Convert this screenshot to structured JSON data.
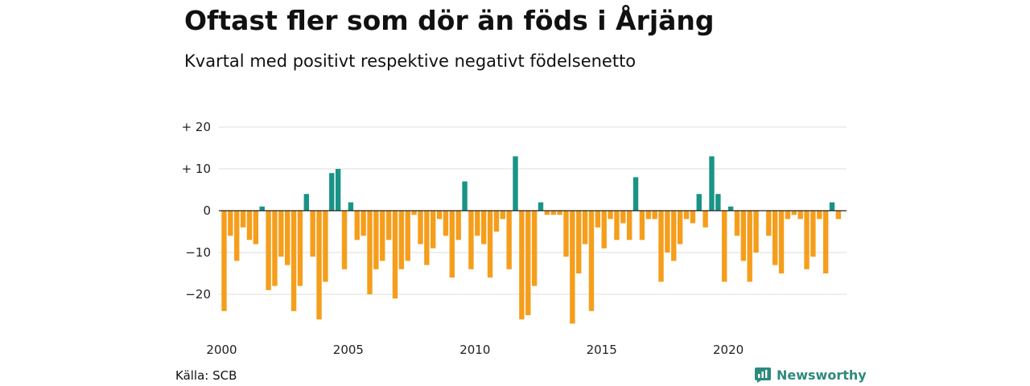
{
  "header": {
    "title": "Oftast fler som dör än föds i Årjäng",
    "subtitle": "Kvartal med positivt respektive negativt födelsenetto"
  },
  "footer": {
    "source": "Källa: SCB",
    "brand": "Newsworthy",
    "brand_icon": "newsworthy-logo-icon"
  },
  "colors": {
    "positive": "#1a9387",
    "negative": "#f59e1c",
    "grid": "#dddddd",
    "zero_line": "#222222"
  },
  "chart_data": {
    "type": "bar",
    "title": "Oftast fler som dör än föds i Årjäng",
    "subtitle": "Kvartal med positivt respektive negativt födelsenetto",
    "xlabel": "",
    "ylabel": "",
    "ylim": [
      -28,
      20
    ],
    "yticks": [
      {
        "value": 20,
        "label": "+ 20"
      },
      {
        "value": 10,
        "label": "+ 10"
      },
      {
        "value": 0,
        "label": "0"
      },
      {
        "value": -10,
        "label": "−10"
      },
      {
        "value": -20,
        "label": "−20"
      }
    ],
    "xticks": [
      {
        "year": 2000,
        "label": "2000"
      },
      {
        "year": 2005,
        "label": "2005"
      },
      {
        "year": 2010,
        "label": "2010"
      },
      {
        "year": 2015,
        "label": "2015"
      },
      {
        "year": 2020,
        "label": "2020"
      }
    ],
    "grid": true,
    "legend": "none",
    "categories": [
      "2000 Q1",
      "2000 Q2",
      "2000 Q3",
      "2000 Q4",
      "2001 Q1",
      "2001 Q2",
      "2001 Q3",
      "2001 Q4",
      "2002 Q1",
      "2002 Q2",
      "2002 Q3",
      "2002 Q4",
      "2003 Q1",
      "2003 Q2",
      "2003 Q3",
      "2003 Q4",
      "2004 Q1",
      "2004 Q2",
      "2004 Q3",
      "2004 Q4",
      "2005 Q1",
      "2005 Q2",
      "2005 Q3",
      "2005 Q4",
      "2006 Q1",
      "2006 Q2",
      "2006 Q3",
      "2006 Q4",
      "2007 Q1",
      "2007 Q2",
      "2007 Q3",
      "2007 Q4",
      "2008 Q1",
      "2008 Q2",
      "2008 Q3",
      "2008 Q4",
      "2009 Q1",
      "2009 Q2",
      "2009 Q3",
      "2009 Q4",
      "2010 Q1",
      "2010 Q2",
      "2010 Q3",
      "2010 Q4",
      "2011 Q1",
      "2011 Q2",
      "2011 Q3",
      "2011 Q4",
      "2012 Q1",
      "2012 Q2",
      "2012 Q3",
      "2012 Q4",
      "2013 Q1",
      "2013 Q2",
      "2013 Q3",
      "2013 Q4",
      "2014 Q1",
      "2014 Q2",
      "2014 Q3",
      "2014 Q4",
      "2015 Q1",
      "2015 Q2",
      "2015 Q3",
      "2015 Q4",
      "2016 Q1",
      "2016 Q2",
      "2016 Q3",
      "2016 Q4",
      "2017 Q1",
      "2017 Q2",
      "2017 Q3",
      "2017 Q4",
      "2018 Q1",
      "2018 Q2",
      "2018 Q3",
      "2018 Q4",
      "2019 Q1",
      "2019 Q2",
      "2019 Q3",
      "2019 Q4",
      "2020 Q1",
      "2020 Q2",
      "2020 Q3",
      "2020 Q4",
      "2021 Q1",
      "2021 Q2",
      "2021 Q3",
      "2021 Q4",
      "2022 Q1",
      "2022 Q2",
      "2022 Q3",
      "2022 Q4",
      "2023 Q1",
      "2023 Q2",
      "2023 Q3",
      "2023 Q4",
      "2024 Q1",
      "2024 Q2",
      "2024 Q3",
      "2024 Q4"
    ],
    "values": [
      -24,
      -6,
      -12,
      -4,
      -7,
      -8,
      1,
      -19,
      -18,
      -11,
      -13,
      -24,
      -18,
      4,
      -11,
      -26,
      -17,
      9,
      10,
      -14,
      2,
      -7,
      -6,
      -20,
      -14,
      -12,
      -7,
      -21,
      -14,
      -12,
      -1,
      -8,
      -13,
      -9,
      -2,
      -6,
      -16,
      -7,
      7,
      -14,
      -6,
      -8,
      -16,
      -5,
      -2,
      -14,
      13,
      -26,
      -25,
      -18,
      2,
      -1,
      -1,
      -1,
      -11,
      -27,
      -15,
      -8,
      -24,
      -4,
      -9,
      -2,
      -7,
      -3,
      -7,
      8,
      -7,
      -2,
      -2,
      -17,
      -10,
      -12,
      -8,
      -2,
      -3,
      4,
      -4,
      13,
      4,
      -17,
      1,
      -6,
      -12,
      -17,
      -10,
      0,
      -6,
      -13,
      -15,
      -2,
      -1,
      -2,
      -14,
      -11,
      -2,
      -15,
      2,
      -2,
      0,
      0
    ]
  }
}
